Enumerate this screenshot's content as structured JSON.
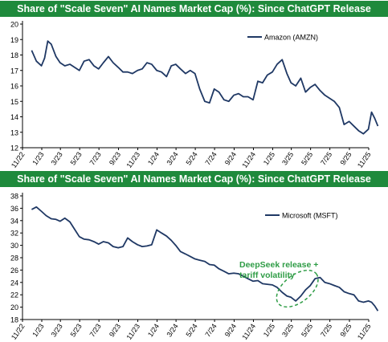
{
  "chart_data": [
    {
      "type": "line",
      "title": "Share of \"Scale Seven\" AI Names Market Cap (%): Since ChatGPT Release",
      "xlabel": "",
      "ylabel": "",
      "x_tick_labels": [
        "11/22",
        "1/23",
        "3/23",
        "5/23",
        "7/23",
        "9/23",
        "11/23",
        "1/24",
        "3/24",
        "5/24",
        "7/24",
        "9/24",
        "11/24",
        "1/25",
        "3/25",
        "5/25",
        "7/25",
        "9/25",
        "11/25"
      ],
      "ylim": [
        12,
        20
      ],
      "y_ticks": [
        12,
        13,
        14,
        15,
        16,
        17,
        18,
        19,
        20
      ],
      "grid": false,
      "legend": "top-right",
      "color": "#1f3864",
      "series": [
        {
          "name": "Amazon (AMZN)",
          "x": [
            "2022-11-30",
            "2022-12-15",
            "2022-12-31",
            "2023-01-10",
            "2023-01-20",
            "2023-01-31",
            "2023-02-15",
            "2023-02-28",
            "2023-03-15",
            "2023-03-31",
            "2023-04-15",
            "2023-04-30",
            "2023-05-15",
            "2023-05-31",
            "2023-06-15",
            "2023-06-30",
            "2023-07-15",
            "2023-07-31",
            "2023-08-15",
            "2023-08-31",
            "2023-09-15",
            "2023-09-30",
            "2023-10-15",
            "2023-10-31",
            "2023-11-15",
            "2023-11-30",
            "2023-12-15",
            "2023-12-31",
            "2024-01-15",
            "2024-01-31",
            "2024-02-15",
            "2024-02-29",
            "2024-03-15",
            "2024-03-31",
            "2024-04-15",
            "2024-04-30",
            "2024-05-15",
            "2024-05-31",
            "2024-06-15",
            "2024-06-30",
            "2024-07-15",
            "2024-07-31",
            "2024-08-15",
            "2024-08-31",
            "2024-09-15",
            "2024-09-30",
            "2024-10-15",
            "2024-10-31",
            "2024-11-15",
            "2024-11-30",
            "2024-12-15",
            "2024-12-31",
            "2025-01-15",
            "2025-01-31",
            "2025-02-15",
            "2025-02-28",
            "2025-03-15",
            "2025-03-31",
            "2025-04-15",
            "2025-04-30",
            "2025-05-15",
            "2025-05-31",
            "2025-06-15",
            "2025-06-30",
            "2025-07-15",
            "2025-07-31",
            "2025-08-15",
            "2025-08-31",
            "2025-09-15",
            "2025-09-30",
            "2025-10-15",
            "2025-10-31",
            "2025-11-10",
            "2025-11-20",
            "2025-11-30"
          ],
          "values": [
            18.3,
            17.6,
            17.3,
            17.8,
            18.9,
            18.7,
            17.9,
            17.5,
            17.3,
            17.4,
            17.2,
            17.0,
            17.6,
            17.7,
            17.3,
            17.1,
            17.5,
            17.9,
            17.5,
            17.2,
            16.9,
            16.9,
            16.8,
            17.0,
            17.1,
            17.5,
            17.4,
            17.0,
            16.9,
            16.6,
            17.3,
            17.4,
            17.1,
            16.8,
            17.0,
            16.8,
            15.8,
            15.0,
            14.9,
            15.8,
            15.6,
            15.1,
            15.0,
            15.4,
            15.5,
            15.3,
            15.3,
            15.1,
            16.3,
            16.2,
            16.7,
            16.9,
            17.4,
            17.7,
            16.8,
            16.2,
            16.0,
            16.5,
            15.6,
            15.9,
            16.1,
            15.7,
            15.4,
            15.2,
            15.0,
            14.6,
            13.5,
            13.7,
            13.4,
            13.1,
            12.9,
            13.2,
            14.3,
            13.9,
            13.4
          ]
        }
      ]
    },
    {
      "type": "line",
      "title": "Share of \"Scale Seven\" AI Names Market Cap (%): Since ChatGPT Release",
      "xlabel": "",
      "ylabel": "",
      "x_tick_labels": [
        "11/22",
        "1/23",
        "3/23",
        "5/23",
        "7/23",
        "9/23",
        "11/23",
        "1/24",
        "3/24",
        "5/24",
        "7/24",
        "9/24",
        "11/24",
        "1/25",
        "3/25",
        "5/25",
        "7/25",
        "9/25",
        "11/25"
      ],
      "ylim": [
        18,
        38
      ],
      "y_ticks": [
        18,
        20,
        22,
        24,
        26,
        28,
        30,
        32,
        34,
        36,
        38
      ],
      "grid": false,
      "legend": "top-right",
      "color": "#1f3864",
      "annotation": {
        "text": "DeepSeek release + tariff volatility",
        "line1": "DeepSeek release +",
        "line2": "tariff volatility",
        "color": "#2e9c45",
        "ellipse_center": [
          "2025-03-20",
          23.0
        ]
      },
      "series": [
        {
          "name": "Microsoft (MSFT)",
          "x": [
            "2022-11-30",
            "2022-12-15",
            "2022-12-31",
            "2023-01-15",
            "2023-01-31",
            "2023-02-15",
            "2023-02-28",
            "2023-03-15",
            "2023-03-31",
            "2023-04-15",
            "2023-04-30",
            "2023-05-15",
            "2023-05-31",
            "2023-06-15",
            "2023-06-30",
            "2023-07-15",
            "2023-07-31",
            "2023-08-15",
            "2023-08-31",
            "2023-09-15",
            "2023-09-30",
            "2023-10-15",
            "2023-10-31",
            "2023-11-15",
            "2023-11-30",
            "2023-12-15",
            "2023-12-31",
            "2024-01-15",
            "2024-01-31",
            "2024-02-15",
            "2024-02-29",
            "2024-03-15",
            "2024-03-31",
            "2024-04-15",
            "2024-04-30",
            "2024-05-15",
            "2024-05-31",
            "2024-06-15",
            "2024-06-30",
            "2024-07-15",
            "2024-07-31",
            "2024-08-15",
            "2024-08-31",
            "2024-09-15",
            "2024-09-30",
            "2024-10-15",
            "2024-10-31",
            "2024-11-15",
            "2024-11-30",
            "2024-12-15",
            "2024-12-31",
            "2025-01-15",
            "2025-01-31",
            "2025-02-15",
            "2025-02-28",
            "2025-03-15",
            "2025-03-31",
            "2025-04-15",
            "2025-04-30",
            "2025-05-15",
            "2025-05-31",
            "2025-06-15",
            "2025-06-30",
            "2025-07-15",
            "2025-07-31",
            "2025-08-15",
            "2025-08-31",
            "2025-09-15",
            "2025-09-30",
            "2025-10-15",
            "2025-10-31",
            "2025-11-10",
            "2025-11-20",
            "2025-11-30"
          ],
          "values": [
            35.8,
            36.2,
            35.5,
            34.8,
            34.3,
            34.2,
            33.9,
            34.4,
            33.8,
            32.6,
            31.4,
            31.0,
            30.9,
            30.6,
            30.2,
            30.6,
            30.4,
            29.8,
            29.6,
            29.8,
            31.2,
            30.6,
            30.1,
            29.8,
            29.9,
            30.1,
            32.5,
            32.0,
            31.5,
            30.8,
            30.0,
            29.0,
            28.6,
            28.2,
            27.8,
            27.6,
            27.4,
            26.9,
            26.8,
            26.2,
            25.8,
            25.4,
            25.5,
            25.4,
            25.0,
            24.6,
            24.2,
            24.3,
            23.8,
            23.7,
            23.6,
            23.2,
            22.4,
            21.8,
            21.6,
            21.0,
            21.8,
            22.8,
            23.5,
            24.6,
            24.8,
            24.0,
            23.8,
            23.5,
            23.2,
            22.5,
            22.2,
            22.0,
            21.0,
            20.8,
            21.0,
            20.8,
            20.2,
            19.4
          ]
        }
      ]
    }
  ]
}
